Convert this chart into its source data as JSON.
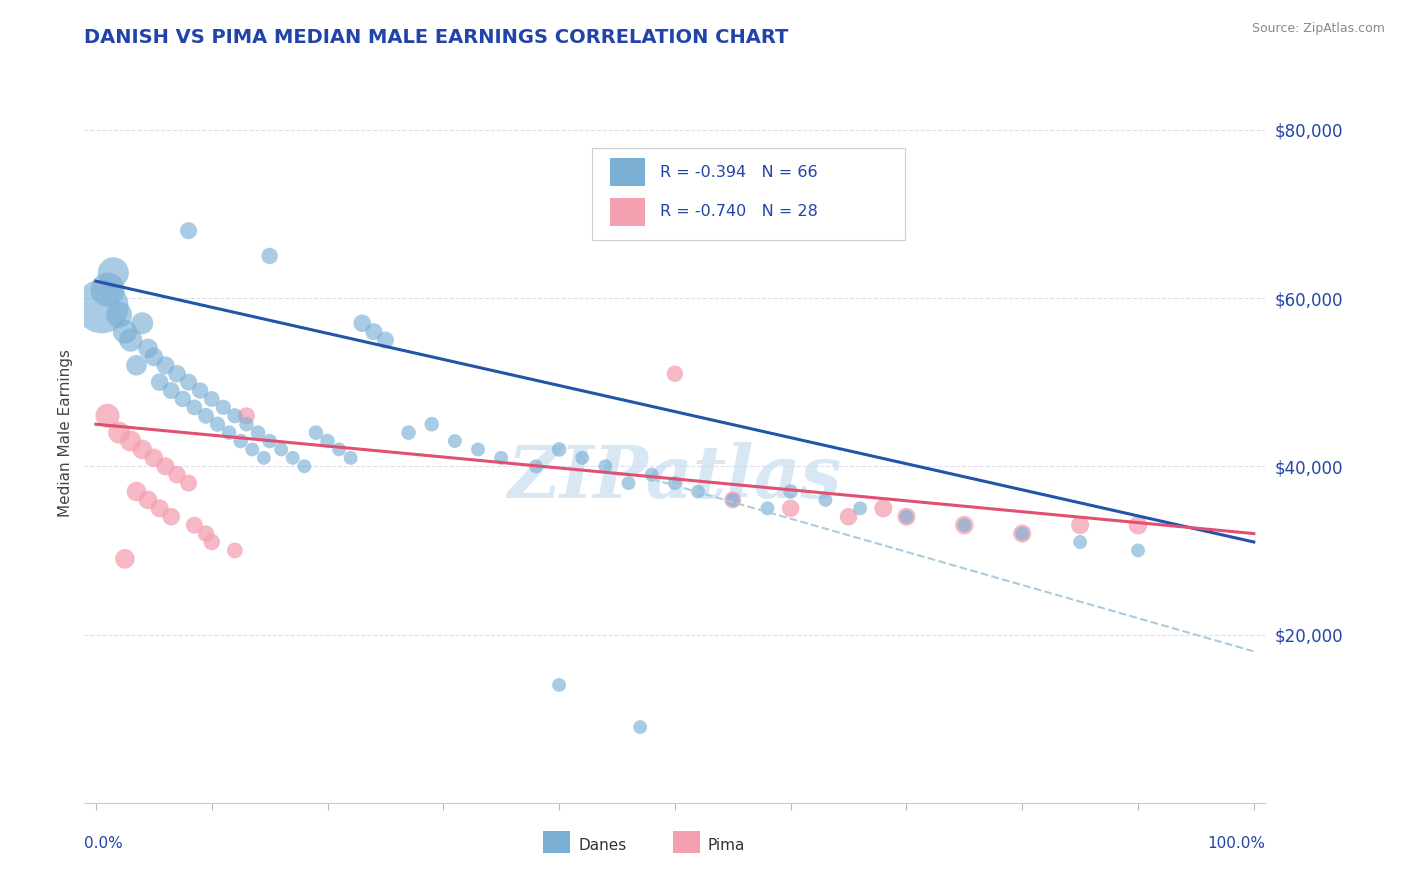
{
  "title": "DANISH VS PIMA MEDIAN MALE EARNINGS CORRELATION CHART",
  "source": "Source: ZipAtlas.com",
  "ylabel": "Median Male Earnings",
  "yticks": [
    20000,
    40000,
    60000,
    80000
  ],
  "ytick_labels": [
    "$20,000",
    "$40,000",
    "$60,000",
    "$80,000"
  ],
  "background_color": "#ffffff",
  "blue_color": "#7BAFD4",
  "pink_color": "#F4A0B0",
  "blue_line_color": "#2255AA",
  "pink_line_color": "#E05070",
  "dashed_line_color": "#AACCDD",
  "title_color": "#2244AA",
  "axis_label_color": "#2244AA",
  "grid_color": "#DDDDEE",
  "watermark_color": "#C8DDF0",
  "danes_points": [
    [
      1.0,
      61000,
      600
    ],
    [
      1.5,
      63000,
      500
    ],
    [
      2.0,
      58000,
      350
    ],
    [
      2.5,
      56000,
      300
    ],
    [
      3.0,
      55000,
      280
    ],
    [
      3.5,
      52000,
      220
    ],
    [
      4.0,
      57000,
      250
    ],
    [
      4.5,
      54000,
      200
    ],
    [
      5.0,
      53000,
      180
    ],
    [
      5.5,
      50000,
      160
    ],
    [
      6.0,
      52000,
      170
    ],
    [
      6.5,
      49000,
      150
    ],
    [
      7.0,
      51000,
      160
    ],
    [
      7.5,
      48000,
      140
    ],
    [
      8.0,
      50000,
      150
    ],
    [
      8.5,
      47000,
      130
    ],
    [
      9.0,
      49000,
      140
    ],
    [
      9.5,
      46000,
      130
    ],
    [
      10.0,
      48000,
      130
    ],
    [
      10.5,
      45000,
      120
    ],
    [
      11.0,
      47000,
      120
    ],
    [
      11.5,
      44000,
      110
    ],
    [
      12.0,
      46000,
      120
    ],
    [
      12.5,
      43000,
      110
    ],
    [
      13.0,
      45000,
      110
    ],
    [
      13.5,
      42000,
      100
    ],
    [
      14.0,
      44000,
      110
    ],
    [
      14.5,
      41000,
      100
    ],
    [
      15.0,
      43000,
      110
    ],
    [
      16.0,
      42000,
      100
    ],
    [
      17.0,
      41000,
      100
    ],
    [
      18.0,
      40000,
      100
    ],
    [
      19.0,
      44000,
      110
    ],
    [
      20.0,
      43000,
      110
    ],
    [
      21.0,
      42000,
      100
    ],
    [
      22.0,
      41000,
      100
    ],
    [
      23.0,
      57000,
      160
    ],
    [
      24.0,
      56000,
      150
    ],
    [
      25.0,
      55000,
      150
    ],
    [
      27.0,
      44000,
      110
    ],
    [
      29.0,
      45000,
      110
    ],
    [
      31.0,
      43000,
      100
    ],
    [
      33.0,
      42000,
      100
    ],
    [
      35.0,
      41000,
      100
    ],
    [
      38.0,
      40000,
      100
    ],
    [
      40.0,
      42000,
      110
    ],
    [
      42.0,
      41000,
      100
    ],
    [
      44.0,
      40000,
      100
    ],
    [
      46.0,
      38000,
      100
    ],
    [
      48.0,
      39000,
      100
    ],
    [
      50.0,
      38000,
      100
    ],
    [
      52.0,
      37000,
      100
    ],
    [
      55.0,
      36000,
      100
    ],
    [
      58.0,
      35000,
      100
    ],
    [
      60.0,
      37000,
      110
    ],
    [
      63.0,
      36000,
      100
    ],
    [
      66.0,
      35000,
      100
    ],
    [
      70.0,
      34000,
      100
    ],
    [
      75.0,
      33000,
      100
    ],
    [
      80.0,
      32000,
      100
    ],
    [
      85.0,
      31000,
      100
    ],
    [
      90.0,
      30000,
      100
    ],
    [
      8.0,
      68000,
      150
    ],
    [
      15.0,
      65000,
      140
    ],
    [
      40.0,
      14000,
      100
    ],
    [
      47.0,
      9000,
      100
    ],
    [
      0.5,
      59000,
      1500
    ]
  ],
  "pima_points": [
    [
      1.0,
      46000,
      300
    ],
    [
      2.0,
      44000,
      250
    ],
    [
      3.0,
      43000,
      230
    ],
    [
      4.0,
      42000,
      200
    ],
    [
      5.0,
      41000,
      180
    ],
    [
      6.0,
      40000,
      170
    ],
    [
      7.0,
      39000,
      160
    ],
    [
      8.0,
      38000,
      150
    ],
    [
      3.5,
      37000,
      200
    ],
    [
      4.5,
      36000,
      180
    ],
    [
      5.5,
      35000,
      170
    ],
    [
      6.5,
      34000,
      160
    ],
    [
      8.5,
      33000,
      150
    ],
    [
      9.5,
      32000,
      140
    ],
    [
      2.5,
      29000,
      200
    ],
    [
      10.0,
      31000,
      140
    ],
    [
      12.0,
      30000,
      130
    ],
    [
      13.0,
      46000,
      150
    ],
    [
      50.0,
      51000,
      140
    ],
    [
      55.0,
      36000,
      150
    ],
    [
      60.0,
      35000,
      160
    ],
    [
      65.0,
      34000,
      160
    ],
    [
      68.0,
      35000,
      170
    ],
    [
      70.0,
      34000,
      170
    ],
    [
      75.0,
      33000,
      180
    ],
    [
      80.0,
      32000,
      170
    ],
    [
      85.0,
      33000,
      170
    ],
    [
      90.0,
      33000,
      180
    ]
  ],
  "blue_line": [
    [
      0,
      62000
    ],
    [
      100,
      31000
    ]
  ],
  "pink_line": [
    [
      0,
      45000
    ],
    [
      100,
      32000
    ]
  ],
  "dashed_line": [
    [
      48,
      38500
    ],
    [
      100,
      18000
    ]
  ],
  "ylim": [
    0,
    88000
  ],
  "xlim": [
    -1,
    101
  ]
}
